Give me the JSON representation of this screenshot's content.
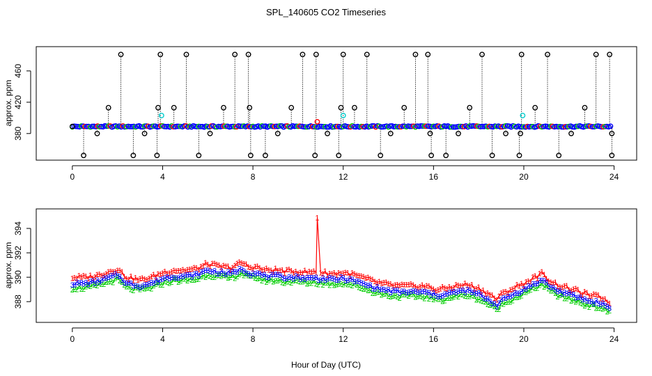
{
  "figure": {
    "title": "SPL_140605  CO2 Timeseries",
    "xlabel": "Hour of Day (UTC)"
  },
  "colors": {
    "axis": "#000000",
    "series_1": "#ff0000",
    "series_2": "#00cc00",
    "series_3": "#0000ff",
    "outlier_cyan": "#00cccc",
    "outlier_black": "#000000",
    "drop_line": "#000000"
  },
  "chart_data": [
    {
      "type": "scatter",
      "panel": "top",
      "title": "SPL_140605  CO2 Timeseries",
      "xlabel": "",
      "ylabel": "approx. ppm",
      "xlim": [
        -1.6,
        25.0
      ],
      "ylim": [
        346,
        491
      ],
      "xticks": [
        0,
        4,
        8,
        12,
        16,
        20,
        24
      ],
      "yticks": [
        380,
        420,
        460
      ],
      "grid": false,
      "baseline_ppm": 389,
      "clipped_high_value": 481,
      "clipped_low_value": 352,
      "high_outlier_hours": [
        2.15,
        3.9,
        5.05,
        7.2,
        7.8,
        10.2,
        10.8,
        12.0,
        13.05,
        15.2,
        15.75,
        18.15,
        19.9,
        21.05,
        23.2,
        23.8
      ],
      "low_outlier_hours": [
        0.5,
        2.7,
        3.75,
        5.6,
        7.9,
        8.55,
        10.75,
        11.8,
        13.65,
        15.9,
        16.55,
        18.6,
        19.8,
        21.55,
        23.9
      ],
      "mid_outlier_values": [
        {
          "x": 0.0,
          "y": 389
        },
        {
          "x": 1.1,
          "y": 380
        },
        {
          "x": 1.6,
          "y": 413
        },
        {
          "x": 3.2,
          "y": 380
        },
        {
          "x": 3.8,
          "y": 413
        },
        {
          "x": 4.5,
          "y": 413
        },
        {
          "x": 6.1,
          "y": 380
        },
        {
          "x": 6.7,
          "y": 413
        },
        {
          "x": 7.85,
          "y": 413
        },
        {
          "x": 9.1,
          "y": 380
        },
        {
          "x": 9.7,
          "y": 413
        },
        {
          "x": 11.3,
          "y": 380
        },
        {
          "x": 11.9,
          "y": 413
        },
        {
          "x": 12.5,
          "y": 413
        },
        {
          "x": 14.1,
          "y": 380
        },
        {
          "x": 14.7,
          "y": 413
        },
        {
          "x": 15.85,
          "y": 380
        },
        {
          "x": 17.1,
          "y": 380
        },
        {
          "x": 17.6,
          "y": 413
        },
        {
          "x": 19.2,
          "y": 380
        },
        {
          "x": 19.85,
          "y": 380
        },
        {
          "x": 20.5,
          "y": 413
        },
        {
          "x": 22.1,
          "y": 380
        },
        {
          "x": 22.7,
          "y": 413
        },
        {
          "x": 23.9,
          "y": 380
        }
      ],
      "cyan_points": [
        {
          "x": 3.95,
          "y": 403
        },
        {
          "x": 12.0,
          "y": 403
        },
        {
          "x": 19.95,
          "y": 403
        }
      ],
      "red_point": {
        "x": 10.85,
        "y": 395
      }
    },
    {
      "type": "scatter",
      "panel": "bottom",
      "title": "",
      "xlabel": "Hour of Day (UTC)",
      "ylabel": "approx. ppm",
      "xlim": [
        -1.6,
        25.0
      ],
      "ylim": [
        386.3,
        395.6
      ],
      "xticks": [
        0,
        4,
        8,
        12,
        16,
        20,
        24
      ],
      "yticks": [
        388,
        390,
        392,
        394
      ],
      "grid": false,
      "series": [
        {
          "name": "1",
          "symbol": "1",
          "color": "#ff0000"
        },
        {
          "name": "2",
          "symbol": "2",
          "color": "#00cc00"
        },
        {
          "name": "3",
          "symbol": "3",
          "color": "#0000ff"
        }
      ],
      "profile_hours": [
        0,
        0.5,
        1.0,
        1.5,
        2.0,
        2.4,
        3.0,
        3.5,
        4.0,
        4.5,
        5.0,
        5.5,
        6.0,
        6.5,
        7.0,
        7.5,
        7.9,
        8.1,
        8.5,
        9.0,
        9.5,
        10.0,
        10.5,
        10.7,
        10.85,
        11.0,
        11.5,
        12.0,
        12.5,
        13.0,
        13.5,
        14.0,
        14.5,
        15.0,
        15.5,
        15.8,
        16.1,
        16.5,
        17.0,
        17.5,
        18.0,
        18.5,
        18.8,
        19.0,
        19.5,
        20.0,
        20.5,
        20.8,
        21.2,
        21.5,
        22.0,
        22.5,
        23.0,
        23.4,
        23.8
      ],
      "profile_ppm": [
        389.5,
        389.5,
        389.6,
        389.9,
        390.2,
        389.5,
        389.3,
        389.5,
        389.9,
        390.1,
        390.1,
        390.2,
        390.6,
        390.4,
        390.3,
        390.7,
        390.3,
        390.4,
        390.1,
        390.1,
        390.0,
        390.0,
        389.9,
        390.0,
        389.9,
        389.9,
        389.8,
        389.9,
        389.7,
        389.4,
        389.1,
        388.9,
        388.8,
        388.8,
        388.8,
        388.7,
        388.5,
        388.6,
        388.8,
        388.9,
        388.6,
        388.1,
        387.7,
        388.1,
        388.6,
        389.0,
        389.5,
        389.8,
        389.2,
        388.9,
        388.6,
        388.3,
        388.0,
        387.9,
        387.5
      ],
      "series_1_offset": 0.5,
      "series_1_spike": {
        "x": 10.85,
        "y": 394.9
      },
      "series_2_offset": -0.35,
      "series_3_offset": 0.0,
      "hour_step": 0.1
    }
  ]
}
